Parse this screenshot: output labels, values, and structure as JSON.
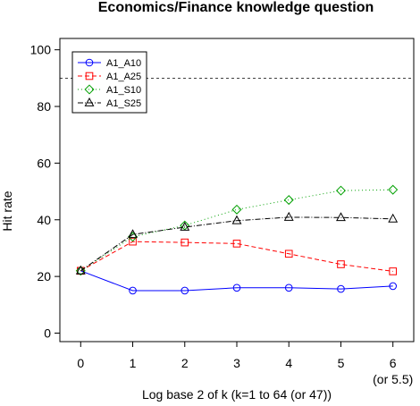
{
  "chart_data": {
    "type": "line",
    "title": "Economics/Finance knowledge question",
    "xlabel": "Log base 2 of k (k=1 to 64 (or 47))",
    "ylabel": "Hit rate",
    "x": [
      0,
      1,
      2,
      3,
      4,
      5,
      6
    ],
    "xtick_labels": [
      "0",
      "1",
      "2",
      "3",
      "4",
      "5",
      "6"
    ],
    "xtick_extra_label": "(or 5.5)",
    "yticks": [
      0,
      20,
      40,
      60,
      80,
      100
    ],
    "xlim": [
      -0.4,
      6.4
    ],
    "ylim": [
      -3,
      104
    ],
    "reference_line": {
      "y": 90,
      "style": "dashed",
      "color": "#000000"
    },
    "legend_position": "top-left",
    "grid": false,
    "series": [
      {
        "name": "A1_A10",
        "color": "#0000ff",
        "dash": "",
        "marker": "circle",
        "values": [
          22,
          15,
          15,
          16,
          16,
          15.6,
          16.6
        ]
      },
      {
        "name": "A1_A25",
        "color": "#ff0000",
        "dash": "5,3",
        "marker": "square",
        "values": [
          22,
          32.3,
          32,
          31.6,
          28,
          24.3,
          21.8
        ]
      },
      {
        "name": "A1_S10",
        "color": "#00a000",
        "dash": "1,3",
        "marker": "diamond",
        "values": [
          22,
          34,
          38,
          43.6,
          47,
          50.3,
          50.6
        ]
      },
      {
        "name": "A1_S25",
        "color": "#000000",
        "dash": "6,2,1,2",
        "marker": "triangle",
        "values": [
          22,
          34.8,
          37.4,
          39.7,
          40.9,
          40.8,
          40.3
        ]
      }
    ]
  }
}
